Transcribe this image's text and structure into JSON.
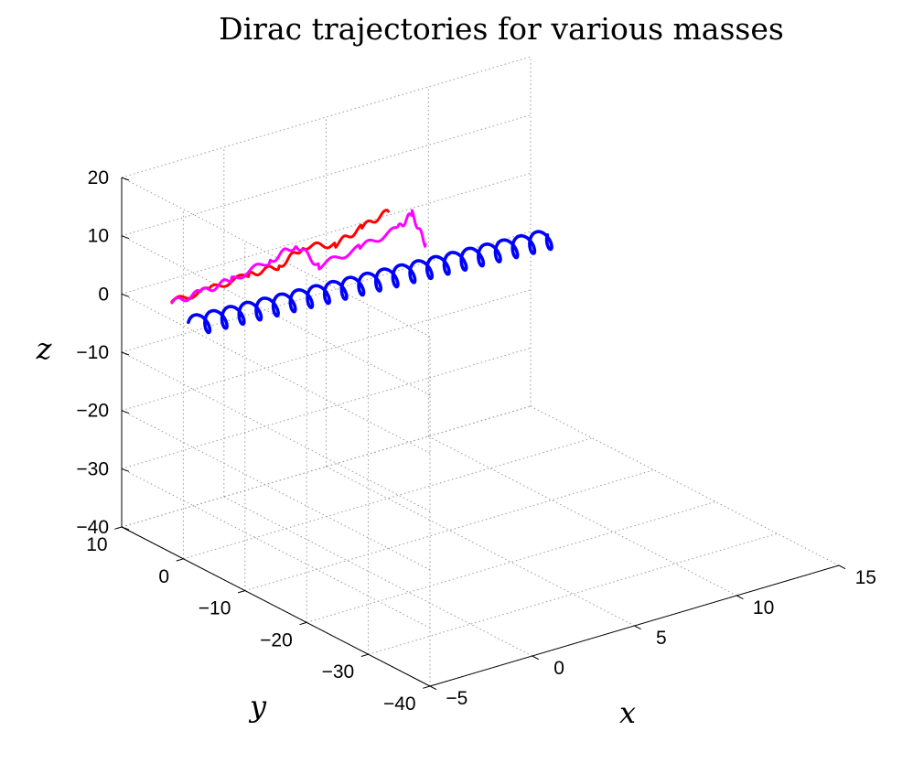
{
  "chart_data": {
    "type": "line3d",
    "title": "Dirac trajectories for various masses",
    "xlabel": "x",
    "ylabel": "y",
    "zlabel": "z",
    "xlim": [
      -5,
      15
    ],
    "ylim": [
      -40,
      10
    ],
    "zlim": [
      -40,
      20
    ],
    "xticks": [
      -5,
      0,
      5,
      10,
      15
    ],
    "yticks": [
      -40,
      -30,
      -20,
      -10,
      0,
      10
    ],
    "zticks": [
      -40,
      -30,
      -20,
      -10,
      0,
      10,
      20
    ],
    "xtick_labels": [
      "−5",
      "0",
      "5",
      "10",
      "15"
    ],
    "ytick_labels": [
      "−40",
      "−30",
      "−20",
      "−10",
      "0",
      "10"
    ],
    "ztick_labels": [
      "−40",
      "−30",
      "−20",
      "−10",
      "0",
      "10",
      "20"
    ],
    "grid": true,
    "view": {
      "azimuth": -37.5,
      "elevation": 30
    },
    "series": [
      {
        "color": "#0000ff",
        "helix": {
          "start": [
            -4,
            1.5,
            -1.8
          ],
          "end": [
            12.5,
            -2.0,
            -2.0
          ],
          "turns": 21,
          "radius": 1.0
        }
      },
      {
        "color": "#ff0000",
        "points": [
          [
            -3.9,
            5.5,
            0.0
          ],
          [
            -2.0,
            5.5,
            0.2
          ],
          [
            0.0,
            5.8,
            0.5
          ],
          [
            1.5,
            6.0,
            0.2
          ],
          [
            3.0,
            7.0,
            1.5
          ],
          [
            4.5,
            6.8,
            0.4
          ],
          [
            6.0,
            7.5,
            1.4
          ],
          [
            7.5,
            8.2,
            2.2
          ]
        ],
        "wobble": 0.5
      },
      {
        "color": "#ff00ff",
        "points": [
          [
            -3.9,
            5.5,
            -0.2
          ],
          [
            -2.5,
            5.3,
            0.3
          ],
          [
            -1.0,
            5.4,
            0.8
          ],
          [
            1.0,
            5.8,
            1.8
          ],
          [
            2.5,
            6.5,
            2.6
          ],
          [
            3.0,
            4.5,
            -0.5
          ],
          [
            5.0,
            4.5,
            0.6
          ],
          [
            7.0,
            5.0,
            1.5
          ],
          [
            8.0,
            6.0,
            2.5
          ],
          [
            8.5,
            5.5,
            -3.0
          ]
        ],
        "wobble": 0.55
      }
    ]
  }
}
